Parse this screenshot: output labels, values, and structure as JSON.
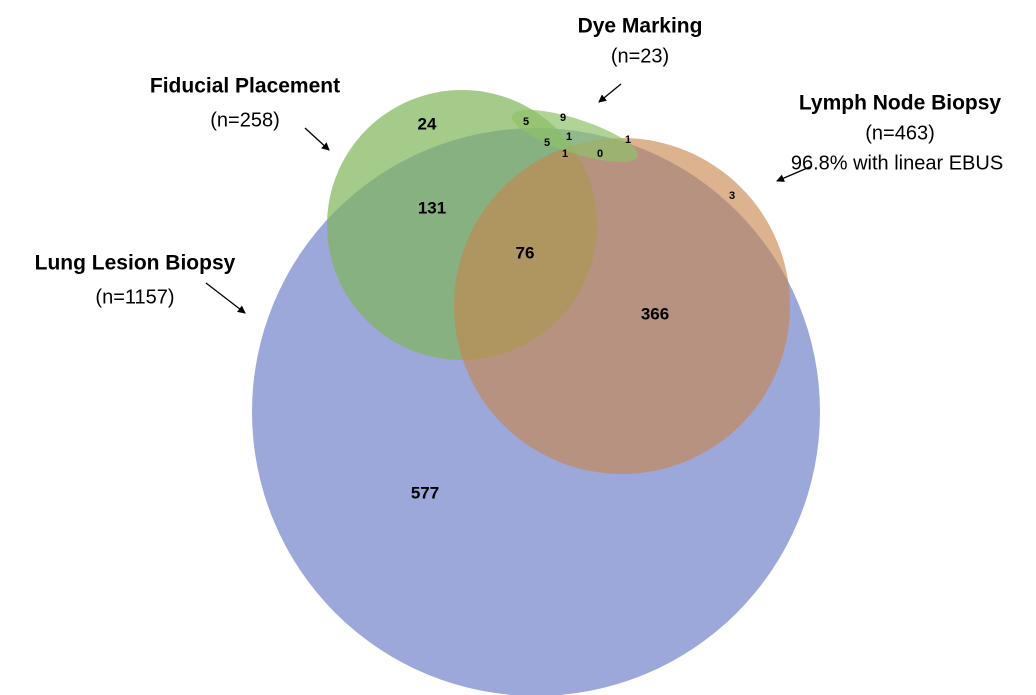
{
  "sets": [
    {
      "name": "Dye Marking",
      "count": "(n=23)"
    },
    {
      "name": "Fiducial Placement",
      "count": "(n=258)"
    },
    {
      "name": "Lymph Node Biopsy",
      "count": "(n=463)",
      "note": "96.8% with linear EBUS"
    },
    {
      "name": "Lung Lesion Biopsy",
      "count": "(n=1157)"
    }
  ],
  "regions": [
    24,
    131,
    76,
    366,
    577,
    3,
    5,
    9,
    5,
    1,
    1,
    0,
    1
  ]
}
